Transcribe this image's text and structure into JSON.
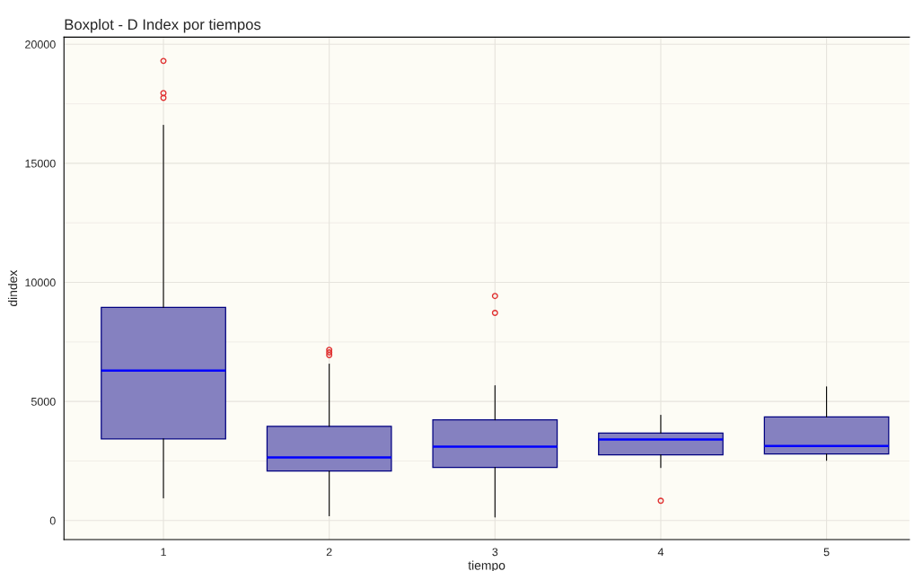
{
  "chart_data": {
    "type": "box",
    "title": "Boxplot - D Index por tiempos",
    "xlabel": "tiempo",
    "ylabel": "dindex",
    "categories": [
      "1",
      "2",
      "3",
      "4",
      "5"
    ],
    "color": "#8581c0",
    "boxes": [
      {
        "low": 950,
        "q1": 3430,
        "median": 6300,
        "q3": 8950,
        "high": 16600,
        "outliers": [
          17750,
          17950,
          19300
        ]
      },
      {
        "low": 200,
        "q1": 2080,
        "median": 2650,
        "q3": 3960,
        "high": 6570,
        "outliers": [
          6950,
          7060,
          7170
        ]
      },
      {
        "low": 150,
        "q1": 2230,
        "median": 3100,
        "q3": 4230,
        "high": 5660,
        "outliers": [
          8720,
          9430
        ]
      },
      {
        "low": 2230,
        "q1": 2760,
        "median": 3400,
        "q3": 3670,
        "high": 4420,
        "outliers": [
          830
        ]
      },
      {
        "low": 2530,
        "q1": 2800,
        "median": 3130,
        "q3": 4350,
        "high": 5620
      }
    ],
    "ylim": [
      -800,
      20300
    ],
    "yticks": [
      0,
      5000,
      10000,
      15000,
      20000
    ],
    "grid": true
  }
}
